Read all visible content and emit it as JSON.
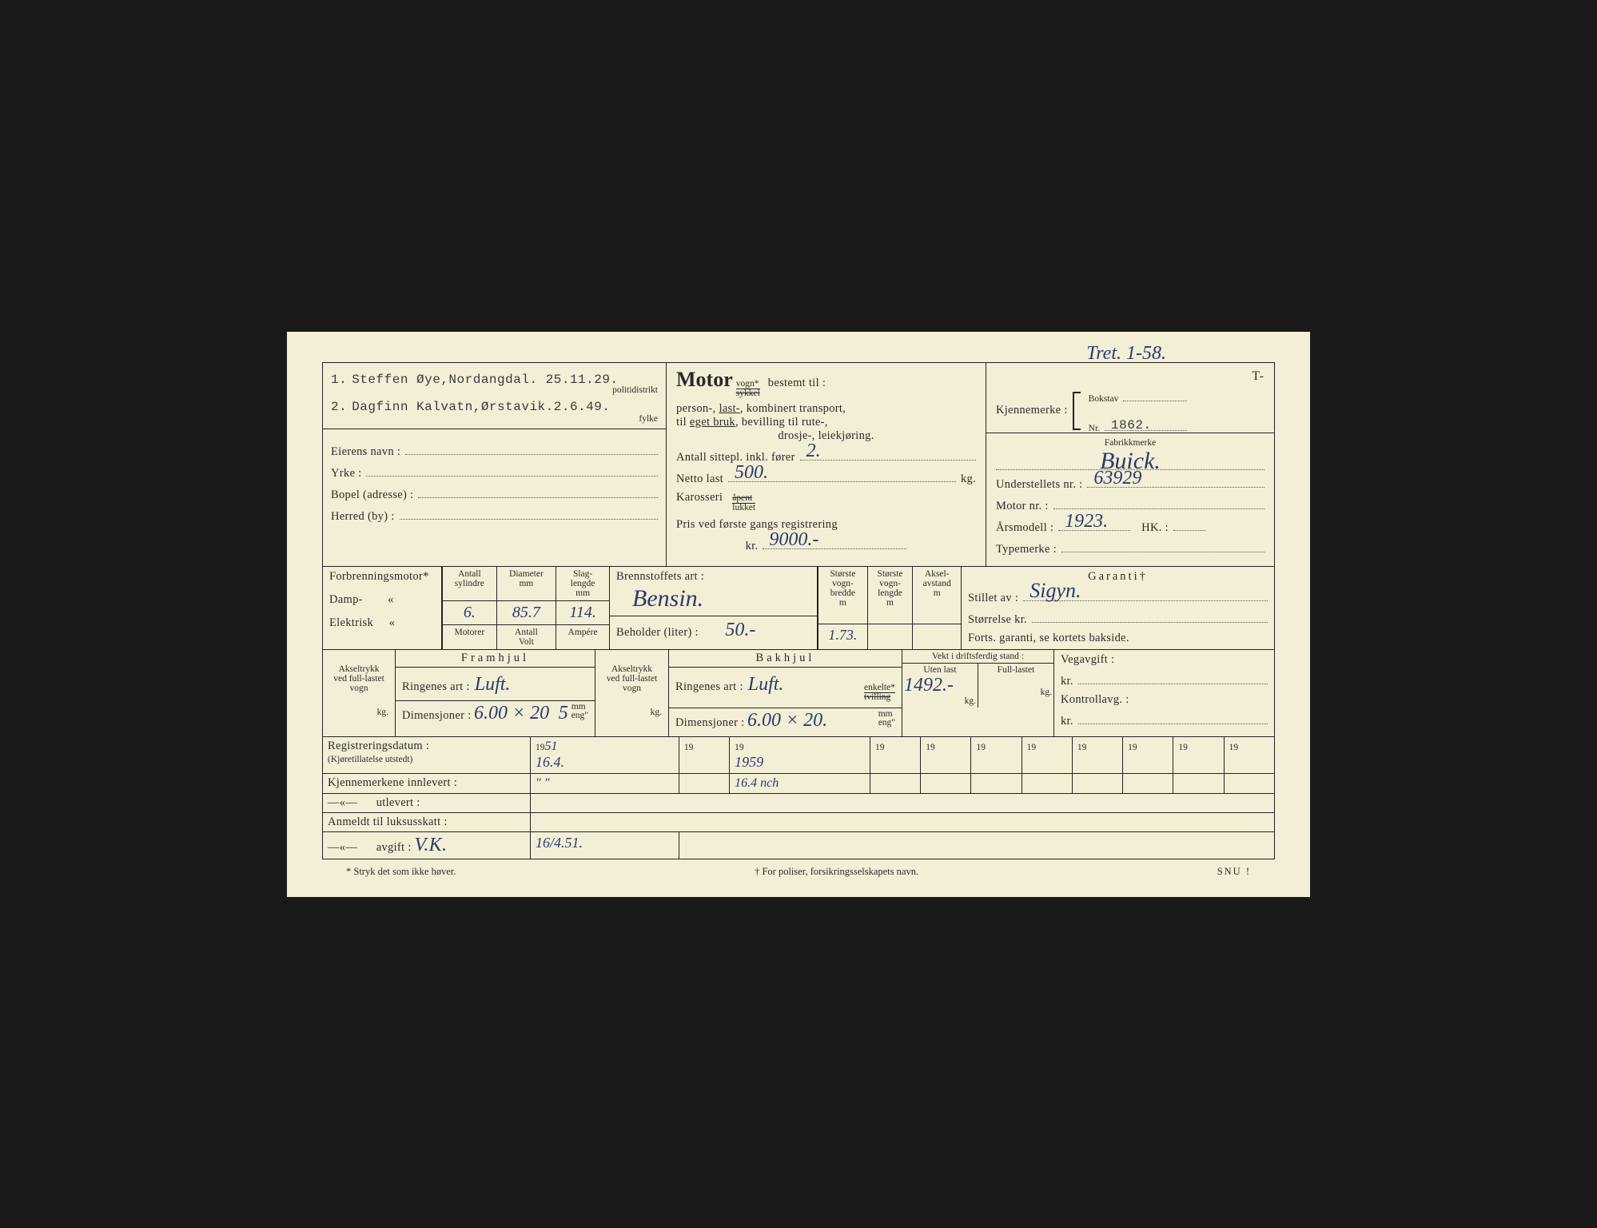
{
  "colors": {
    "paper": "#f3efd6",
    "ink": "#2a2a2a",
    "handwriting": "#2a3a6a",
    "border": "#222222",
    "background": "#1a1a1a"
  },
  "typography": {
    "printed_family": "Times New Roman",
    "printed_size_pt": 14,
    "small_size_pt": 11,
    "typed_family": "Courier New",
    "handwritten_family": "Brush Script MT",
    "handwritten_size_pt": 24
  },
  "annotation_top": "Tret. 1-58.",
  "owners_box": {
    "line1_prefix": "1.",
    "line1_typed": "Steffen Øye,Nordangdal. 25.11.29.",
    "line1_suffix": "politidistrikt",
    "line2_prefix": "2.",
    "line2_typed": "Dagfinn Kalvatn,Ørstavik.2.6.49.",
    "line2_suffix": "fylke"
  },
  "owner_details": {
    "eierens_navn_label": "Eierens navn :",
    "yrke_label": "Yrke :",
    "bopel_label": "Bopel (adresse) :",
    "herred_label": "Herred (by) :"
  },
  "motor_box": {
    "title": "Motor",
    "vogn": "vogn*",
    "sykkel": "sykkel",
    "bestemt_til": "bestemt til :",
    "desc_line1": "person-, last-, kombinert transport,",
    "last_underlined": "last-",
    "desc_line2": "til eget bruk, bevilling til rute-,",
    "eget_bruk_underlined": "eget bruk",
    "desc_line3": "drosje-, leiekjøring.",
    "antall_sittepl_label": "Antall sittepl. inkl. fører",
    "antall_sittepl": "2.",
    "netto_last_label": "Netto last",
    "netto_last": "500.",
    "netto_last_unit": "kg.",
    "karosseri_label": "Karosseri",
    "karosseri_apent": "åpent",
    "karosseri_lukket": "lukket",
    "pris_label": "Pris ved første gangs registrering",
    "pris_kr": "kr.",
    "pris": "9000.-"
  },
  "kjennemerke_box": {
    "prefix": "T-",
    "label": "Kjennemerke :",
    "bokstav_label": "Bokstav",
    "bokstav": "",
    "nr_label": "Nr.",
    "nr": "1862."
  },
  "fabrikk_box": {
    "fabrikkmerke_label": "Fabrikkmerke",
    "fabrikkmerke": "Buick.",
    "understell_label": "Understellets nr. :",
    "understell": "63929",
    "motor_nr_label": "Motor nr. :",
    "motor_nr": "",
    "arsmodell_label": "Årsmodell :",
    "arsmodell": "1923.",
    "hk_label": "HK. :",
    "hk": "",
    "typemerke_label": "Typemerke :",
    "typemerke": ""
  },
  "engine_table": {
    "forbrenningsmotor": "Forbrenningsmotor*",
    "damp": "Damp-        «",
    "elektrisk": "Elektrisk     «",
    "col_antall_syl": "Antall\nsylindre",
    "col_diameter": "Diameter\nmm",
    "col_slaglengde": "Slag-\nlengde\nmm",
    "val_sylindre": "6.",
    "val_diameter": "85.7",
    "val_slaglengde": "114.",
    "row2_motorer": "Motorer",
    "row2_antall": "Antall",
    "row2_volt": "Volt",
    "row2_ampere": "Ampére",
    "brennstoff_label": "Brennstoffets art :",
    "brennstoff": "Bensin.",
    "beholder_label": "Beholder (liter) :",
    "beholder": "50.-",
    "col_bredde": "Største\nvogn-\nbredde\nm",
    "col_lengde": "Største\nvogn-\nlengde\nm",
    "col_aksel": "Aksel-\navstand\nm",
    "val_bredde": "1.73.",
    "val_lengde": "",
    "val_aksel": ""
  },
  "garanti_box": {
    "title": "Garanti†",
    "stillet_label": "Stillet av :",
    "stillet": "Sigyn.",
    "storrelse_label": "Størrelse kr.",
    "storrelse": "",
    "forts": "Forts. garanti, se kortets bakside."
  },
  "wheels": {
    "framhjul": "Framhjul",
    "bakhjul": "Bakhjul",
    "akseltrykk_label": "Akseltrykk\nved full-lastet\nvogn",
    "ringenes_art_label": "Ringenes art :",
    "ringenes_art_front": "Luft.",
    "ringenes_art_back": "Luft.",
    "enkelte": "enkelte*",
    "tvilling": "tvilling",
    "dimensjoner_label": "Dimensjoner :",
    "dimensjoner_front": "6.00 × 20",
    "dimensjoner_back": "6.00 × 20.",
    "mm_eng": "mm\neng\"",
    "front_kg": "5",
    "kg_label": "kg.",
    "vekt_title": "Vekt i driftsferdig stand :",
    "uten_last": "Uten last",
    "full_lastet": "Full-lastet",
    "uten_last_val": "1492.-",
    "full_lastet_val": "",
    "vegavgift": "Vegavgift :",
    "kontrollavg": "Kontrollavg. :",
    "kr": "kr."
  },
  "reg_table": {
    "reg_label": "Registreringsdatum :",
    "reg_sub": "(Kjøretillatelse utstedt)",
    "innlevert": "Kjennemerkene innlevert :",
    "utlevert": "—«—      utlevert :",
    "luksus": "Anmeldt til luksusskatt :",
    "avgift": "—«—      avgift :",
    "avgift_val": "V.K.",
    "year_prefix": "19",
    "cols": [
      {
        "year_suffix": "51",
        "reg": "16.4.",
        "innlevert": "\" \"",
        "avgift": "16/4.51."
      },
      {
        "year_suffix": "",
        "reg": "",
        "innlevert": ""
      },
      {
        "year_suffix": "",
        "reg": "1959",
        "innlevert": "16.4 nch"
      },
      {
        "year_suffix": "",
        "reg": ""
      },
      {
        "year_suffix": "",
        "reg": ""
      },
      {
        "year_suffix": "",
        "reg": ""
      },
      {
        "year_suffix": "",
        "reg": ""
      },
      {
        "year_suffix": "",
        "reg": ""
      },
      {
        "year_suffix": "",
        "reg": ""
      },
      {
        "year_suffix": "",
        "reg": ""
      },
      {
        "year_suffix": "",
        "reg": ""
      }
    ]
  },
  "footnotes": {
    "left": "* Stryk det som ikke høver.",
    "center": "† For poliser, forsikringsselskapets navn.",
    "right": "SNU !"
  }
}
